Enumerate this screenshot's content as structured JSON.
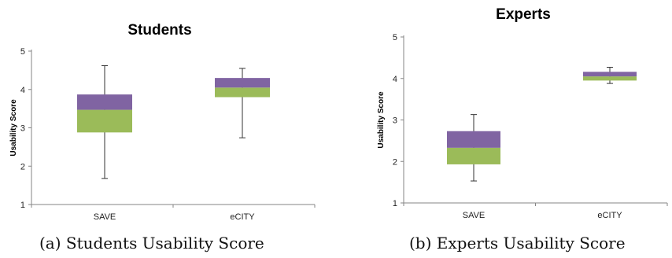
{
  "chart_data": [
    {
      "type": "box",
      "title": "Students",
      "ylabel": "Usability Score",
      "xlabel": "",
      "ylim": [
        1,
        5
      ],
      "yticks": [
        "1",
        "2",
        "3",
        "4",
        "5"
      ],
      "categories": [
        "SAVE",
        "eCITY"
      ],
      "boxes": [
        {
          "category": "SAVE",
          "min": 1.68,
          "q1": 2.88,
          "median": 3.47,
          "q3": 3.87,
          "max": 4.62
        },
        {
          "category": "eCITY",
          "min": 2.74,
          "q1": 3.8,
          "median": 4.05,
          "q3": 4.3,
          "max": 4.55
        }
      ],
      "colors": {
        "lower_box": "#9bbb59",
        "upper_box": "#8064a2"
      },
      "grid": false,
      "legend": "none"
    },
    {
      "type": "box",
      "title": "Experts",
      "ylabel": "Usability Score",
      "xlabel": "",
      "ylim": [
        1,
        5
      ],
      "yticks": [
        "1",
        "2",
        "3",
        "4",
        "5"
      ],
      "categories": [
        "SAVE",
        "eCITY"
      ],
      "boxes": [
        {
          "category": "SAVE",
          "min": 1.53,
          "q1": 1.93,
          "median": 2.33,
          "q3": 2.73,
          "max": 3.13
        },
        {
          "category": "eCITY",
          "min": 3.88,
          "q1": 3.95,
          "median": 4.05,
          "q3": 4.16,
          "max": 4.27
        }
      ],
      "colors": {
        "lower_box": "#9bbb59",
        "upper_box": "#8064a2"
      },
      "grid": false,
      "legend": "none"
    }
  ],
  "captions": [
    "(a) Students Usability Score",
    "(b) Experts Usability Score"
  ]
}
